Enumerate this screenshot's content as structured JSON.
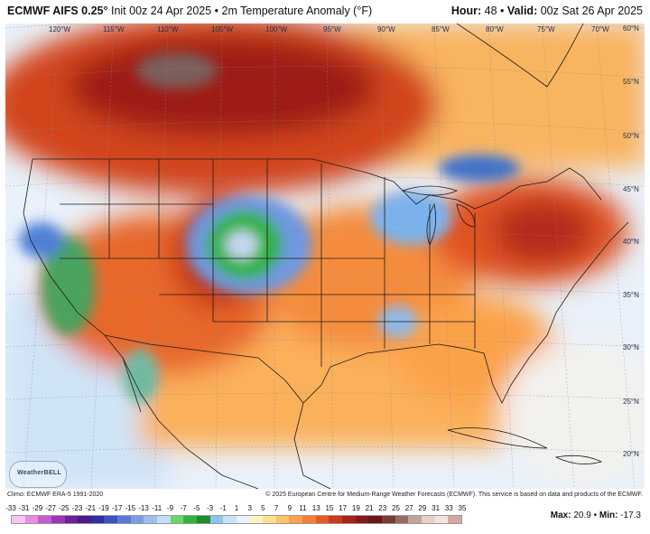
{
  "header": {
    "model": "ECMWF AIFS 0.25°",
    "init": "Init 00z 24 Apr 2025 • 2m Temperature Anomaly (°F)",
    "hour_label": "Hour:",
    "hour": "48",
    "valid_label": "Valid:",
    "valid": "00z Sat 26 Apr 2025"
  },
  "longitudes": [
    "120°W",
    "115°W",
    "110°W",
    "105°W",
    "100°W",
    "95°W",
    "90°W",
    "85°W",
    "80°W",
    "75°W",
    "70°W"
  ],
  "latitudes": [
    "60°N",
    "55°N",
    "50°N",
    "45°N",
    "40°N",
    "35°N",
    "30°N",
    "25°N",
    "20°N"
  ],
  "footer": {
    "climo": "Climo: ECMWF ERA-5 1991-2020",
    "copyright": "© 2025 European Centre for Medium-Range Weather Forecasts (ECMWF). This service is based on data and products of the ECMWF.",
    "logo": "WeatherBELL"
  },
  "legend": {
    "labels": [
      "-33",
      "-31",
      "-29",
      "-27",
      "-25",
      "-23",
      "-21",
      "-19",
      "-17",
      "-15",
      "-13",
      "-11",
      "-9",
      "-7",
      "-5",
      "-3",
      "-1",
      "1",
      "3",
      "5",
      "7",
      "9",
      "11",
      "13",
      "15",
      "17",
      "19",
      "21",
      "23",
      "25",
      "27",
      "29",
      "31",
      "33",
      "35"
    ],
    "colors": [
      "#f7c6f0",
      "#e58ee0",
      "#c65ccf",
      "#9b36b5",
      "#6f1f9c",
      "#4a1a8a",
      "#2e2f9f",
      "#3d52c2",
      "#5a78d8",
      "#7b9be6",
      "#9fbef0",
      "#c3dcf7",
      "#6dd36d",
      "#2fb53a",
      "#1c8f2c",
      "#8ec3f0",
      "#c8e2f7",
      "#e8f2fb",
      "#fdf3c0",
      "#fde08c",
      "#fcc566",
      "#fba24a",
      "#f47e35",
      "#e55a25",
      "#cc3a1b",
      "#a8231a",
      "#86171a",
      "#6a1518",
      "#7a3a33",
      "#9a6a62",
      "#c4a29c",
      "#e8cfcb",
      "#f3e4e2",
      "#d7a6a0"
    ],
    "max_label": "Max:",
    "max": "20.9",
    "min_label": "Min:",
    "min": "-17.3"
  }
}
